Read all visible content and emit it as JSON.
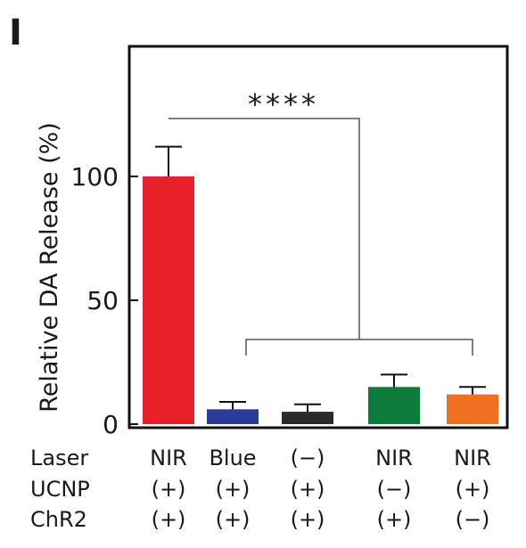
{
  "panel_label": "I",
  "chart_data": {
    "type": "bar",
    "ylabel": "Relative DA Release (%)",
    "ylim": [
      0,
      150
    ],
    "yticks": [
      0,
      50,
      100
    ],
    "categories": [
      "1",
      "2",
      "3",
      "4",
      "5"
    ],
    "values": [
      100,
      6,
      5,
      15,
      12
    ],
    "errors": [
      12,
      3,
      3,
      5,
      3
    ],
    "colors": [
      "#e8202a",
      "#2a3c9a",
      "#2b2b2b",
      "#0e7a3b",
      "#f07021"
    ],
    "grid": false,
    "condition_rows": [
      {
        "name": "Laser",
        "values": [
          "NIR",
          "Blue",
          "(−)",
          "NIR",
          "NIR"
        ]
      },
      {
        "name": "UCNP",
        "values": [
          "(+)",
          "(+)",
          "(+)",
          "(−)",
          "(+)"
        ]
      },
      {
        "name": "ChR2",
        "values": [
          "(+)",
          "(+)",
          "(+)",
          "(+)",
          "(−)"
        ]
      }
    ],
    "annotation": {
      "text": "****",
      "from_bar": 0,
      "to_bars": [
        1,
        4
      ]
    }
  }
}
